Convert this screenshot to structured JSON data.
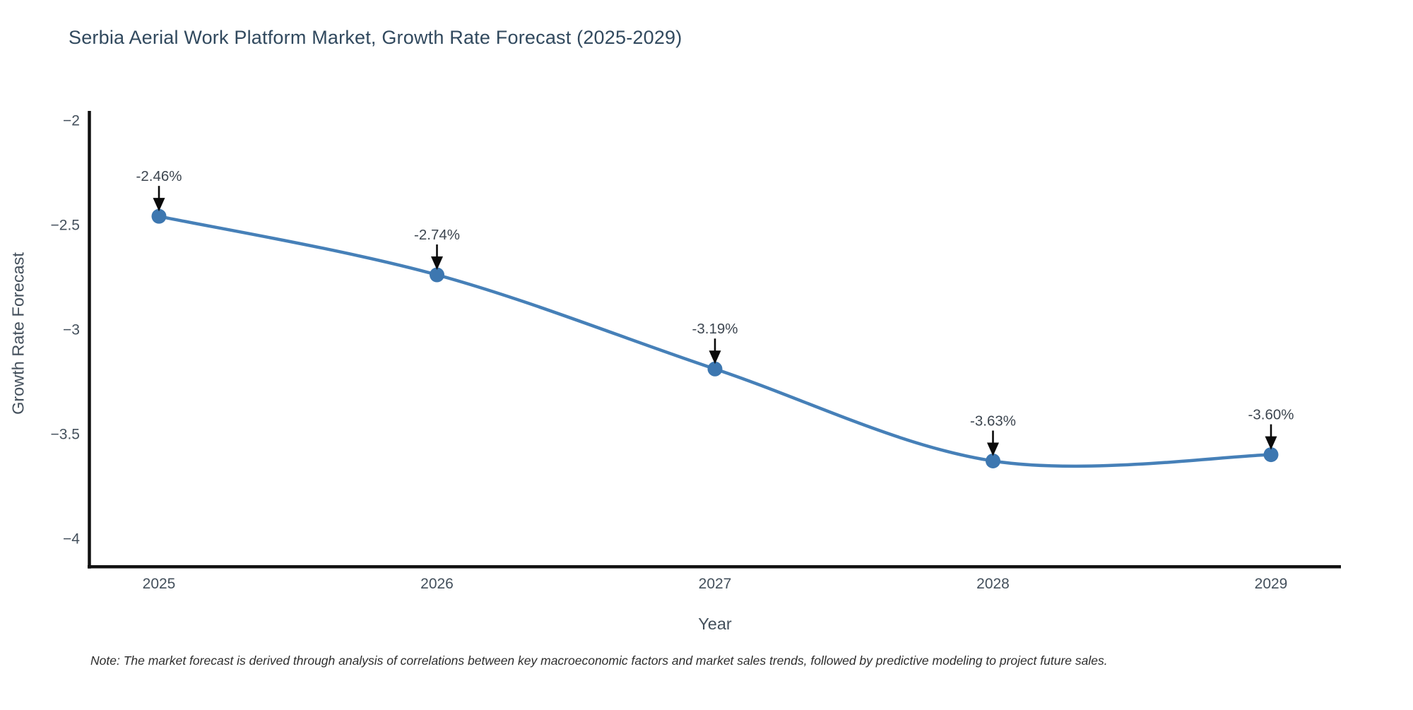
{
  "title": "Serbia Aerial Work Platform Market, Growth Rate Forecast (2025-2029)",
  "note": "Note: The market forecast is derived through analysis of correlations between key macroeconomic factors and market sales trends, followed by predictive modeling to project future sales.",
  "colors": {
    "background": "#ffffff",
    "line": "#4680b8",
    "marker": "#3d77b0",
    "axis": "#111111",
    "arrow": "#0a0a0a",
    "title_text": "#31495e",
    "tick_text": "#44505c",
    "axis_title_text": "#44505c",
    "annotation_text": "#3d4650",
    "note_text": "#2e2e2e"
  },
  "chart_data": {
    "type": "line",
    "categories": [
      "2025",
      "2026",
      "2027",
      "2028",
      "2029"
    ],
    "values": [
      -2.46,
      -2.74,
      -3.19,
      -3.63,
      -3.6
    ],
    "point_labels": [
      "-2.46%",
      "-2.74%",
      "-3.19%",
      "-3.63%",
      "-3.60%"
    ],
    "title": "Serbia Aerial Work Platform Market, Growth Rate Forecast (2025-2029)",
    "xlabel": "Year",
    "ylabel": "Growth Rate Forecast",
    "ylim": [
      -4.14,
      -1.96
    ],
    "yticks": [
      -2,
      -2.5,
      -3,
      -3.5,
      -4
    ],
    "ytick_labels": [
      "−2",
      "−2.5",
      "−3",
      "−3.5",
      "−4"
    ],
    "grid": false,
    "legend": "none",
    "line_style": "smooth-spline",
    "marker_style": "circle",
    "annotation_arrows": true
  }
}
